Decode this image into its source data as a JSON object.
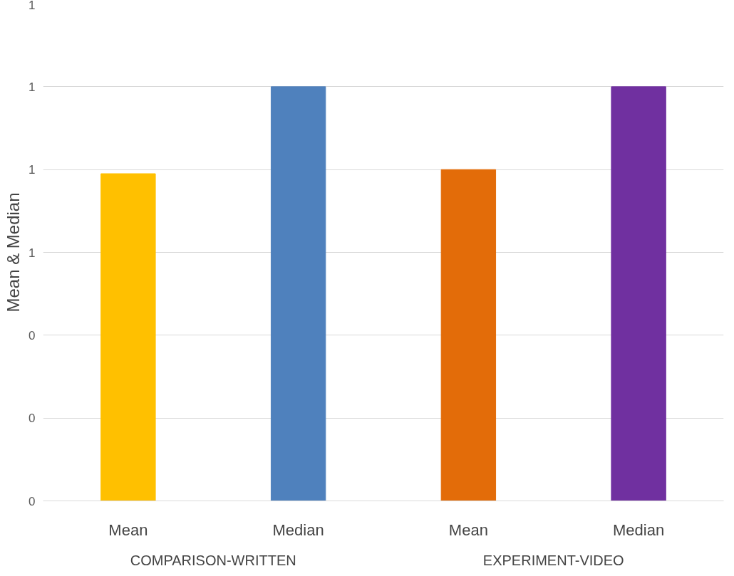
{
  "chart_data": {
    "type": "bar",
    "ylabel": "Mean & Median",
    "categories": [
      "Mean",
      "Median",
      "Mean",
      "Median"
    ],
    "values": [
      0.79,
      1.0,
      0.8,
      1.0
    ],
    "colors": [
      "#ffc000",
      "#4f81bd",
      "#e36c09",
      "#7030a0"
    ],
    "ylim": [
      0,
      1.2
    ],
    "yticks": [
      {
        "value": 0,
        "label": "0"
      },
      {
        "value": 0.2,
        "label": "0"
      },
      {
        "value": 0.4,
        "label": "0"
      },
      {
        "value": 0.6,
        "label": "1"
      },
      {
        "value": 0.8,
        "label": "1"
      },
      {
        "value": 1.0,
        "label": "1"
      },
      {
        "value": 1.2,
        "label": "1"
      }
    ],
    "grid": "y",
    "annotations": [
      "COMPARISON-WRITTEN",
      "EXPERIMENT-VIDEO"
    ]
  }
}
